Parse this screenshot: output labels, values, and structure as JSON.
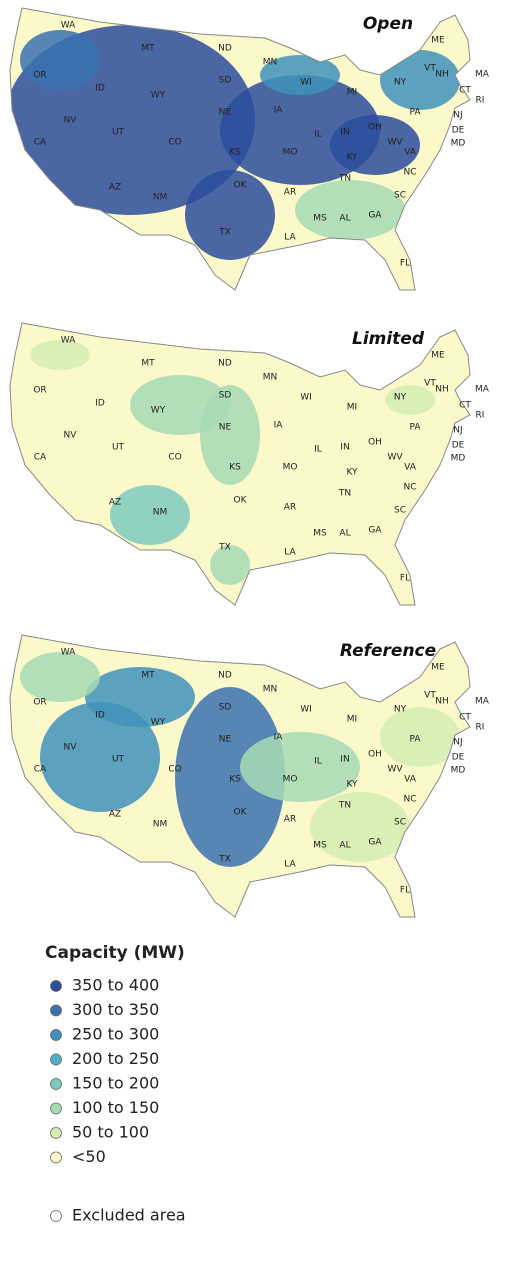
{
  "maps": [
    {
      "title": "Open",
      "state_labels": [
        "WA",
        "MT",
        "ND",
        "MN",
        "ME",
        "OR",
        "ID",
        "WY",
        "SD",
        "WI",
        "MI",
        "NY",
        "VT",
        "NH",
        "MA",
        "RI",
        "CT",
        "NV",
        "UT",
        "NE",
        "IA",
        "PA",
        "NJ",
        "DE",
        "MD",
        "CA",
        "CO",
        "KS",
        "MO",
        "IL",
        "IN",
        "OH",
        "WV",
        "KY",
        "VA",
        "AZ",
        "NM",
        "OK",
        "AR",
        "TN",
        "NC",
        "SC",
        "MS",
        "AL",
        "GA",
        "TX",
        "LA",
        "FL"
      ]
    },
    {
      "title": "Limited",
      "state_labels": [
        "WA",
        "MT",
        "ND",
        "MN",
        "ME",
        "OR",
        "ID",
        "WY",
        "SD",
        "WI",
        "MI",
        "NY",
        "VT",
        "NH",
        "MA",
        "RI",
        "CT",
        "NV",
        "UT",
        "NE",
        "IA",
        "PA",
        "NJ",
        "DE",
        "MD",
        "CA",
        "CO",
        "KS",
        "MO",
        "IL",
        "IN",
        "OH",
        "WV",
        "KY",
        "VA",
        "AZ",
        "NM",
        "OK",
        "AR",
        "TN",
        "NC",
        "SC",
        "MS",
        "AL",
        "GA",
        "TX",
        "LA",
        "FL"
      ]
    },
    {
      "title": "Reference",
      "state_labels": [
        "WA",
        "MT",
        "ND",
        "MN",
        "ME",
        "OR",
        "ID",
        "WY",
        "SD",
        "WI",
        "MI",
        "NY",
        "VT",
        "NH",
        "MA",
        "RI",
        "CT",
        "NV",
        "UT",
        "NE",
        "IA",
        "PA",
        "NJ",
        "DE",
        "MD",
        "CA",
        "CO",
        "KS",
        "MO",
        "IL",
        "IN",
        "OH",
        "WV",
        "KY",
        "VA",
        "AZ",
        "NM",
        "OK",
        "AR",
        "TN",
        "NC",
        "SC",
        "MS",
        "AL",
        "GA",
        "TX",
        "LA",
        "FL"
      ]
    }
  ],
  "legend": {
    "title": "Capacity (MW)",
    "items": [
      {
        "label": "350 to 400",
        "color": "#2b4e9c"
      },
      {
        "label": "300 to 350",
        "color": "#3a72b0"
      },
      {
        "label": "250 to 300",
        "color": "#3f92bb"
      },
      {
        "label": "200 to 250",
        "color": "#4fb1c4"
      },
      {
        "label": "150 to 200",
        "color": "#7ccac0"
      },
      {
        "label": "100 to 150",
        "color": "#a6dbb5"
      },
      {
        "label": "50 to 100",
        "color": "#d4edb3"
      },
      {
        "label": "<50",
        "color": "#fbf8c9"
      }
    ],
    "excluded": {
      "label": "Excluded area",
      "color": "#ffffff"
    }
  }
}
